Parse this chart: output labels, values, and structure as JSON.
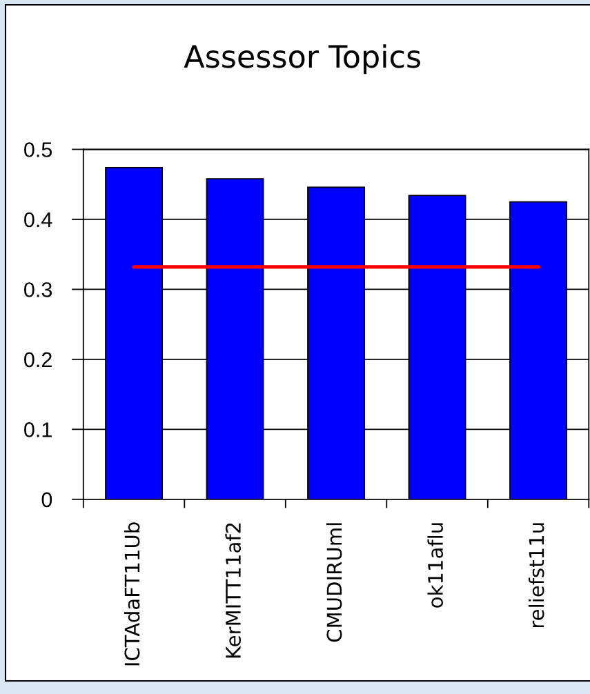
{
  "chart_data": {
    "type": "bar",
    "title": "Assessor Topics",
    "categories": [
      "ICTAdaFT11Ub",
      "KerMITT11af2",
      "CMUDIRUml",
      "ok11aflu",
      "reliefst11u"
    ],
    "series": [
      {
        "color": "#0000ff",
        "values": [
          0.474,
          0.458,
          0.446,
          0.434,
          0.425
        ]
      },
      {
        "type": "line",
        "color": "#ff0000",
        "values": [
          0.332,
          0.332,
          0.332,
          0.332,
          0.332
        ]
      }
    ],
    "ylim": [
      0,
      0.5
    ],
    "yticks": [
      0,
      0.1,
      0.2,
      0.3,
      0.4,
      0.5
    ],
    "grid": "y"
  }
}
